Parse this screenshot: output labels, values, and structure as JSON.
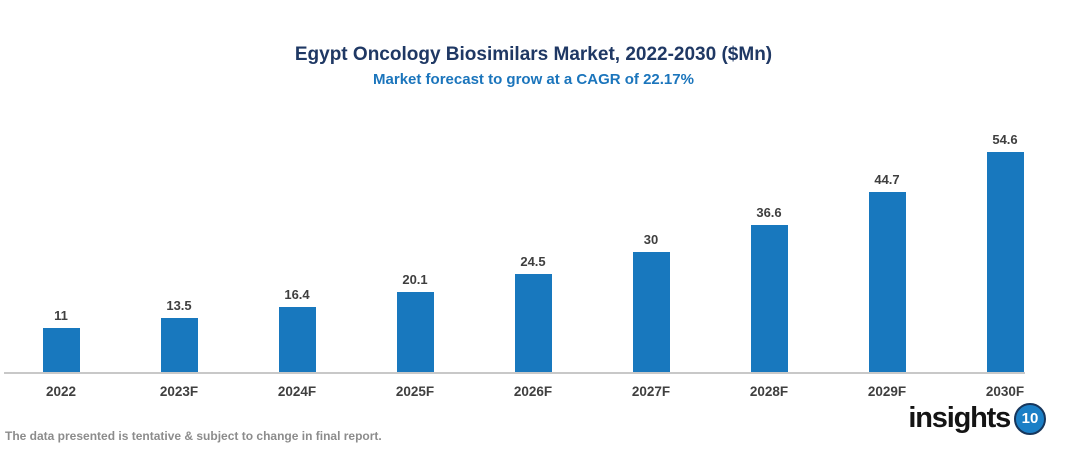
{
  "header": {
    "title": "Egypt Oncology Biosimilars Market, 2022-2030 ($Mn)",
    "subtitle": "Market forecast to grow at a CAGR of 22.17%"
  },
  "chart_data": {
    "type": "bar",
    "categories": [
      "2022",
      "2023F",
      "2024F",
      "2025F",
      "2026F",
      "2027F",
      "2028F",
      "2029F",
      "2030F"
    ],
    "values": [
      11,
      13.5,
      16.4,
      20.1,
      24.5,
      30,
      36.6,
      44.7,
      54.6
    ],
    "value_labels": [
      "11",
      "13.5",
      "16.4",
      "20.1",
      "24.5",
      "30",
      "36.6",
      "44.7",
      "54.6"
    ],
    "title": "Egypt Oncology Biosimilars Market, 2022-2030 ($Mn)",
    "subtitle": "Market forecast to grow at a CAGR of 22.17%",
    "xlabel": "",
    "ylabel": "",
    "ylim": [
      0,
      60
    ],
    "grid": false,
    "legend": false,
    "y_axis_visible": false,
    "bar_color": "#1878BE"
  },
  "footer": {
    "disclaimer": "The data presented is tentative & subject to change in final report.",
    "logo_text": "insights",
    "logo_number": "10"
  },
  "colors": {
    "title": "#1F3864",
    "subtitle": "#1B75BC",
    "bar": "#1878BE",
    "axis_line": "#C8C8C8",
    "labels": "#3F3F3F",
    "disclaimer": "#8C8C8C",
    "logo_circle_fill": "#1B7FC6",
    "logo_circle_ring": "#16365C"
  }
}
